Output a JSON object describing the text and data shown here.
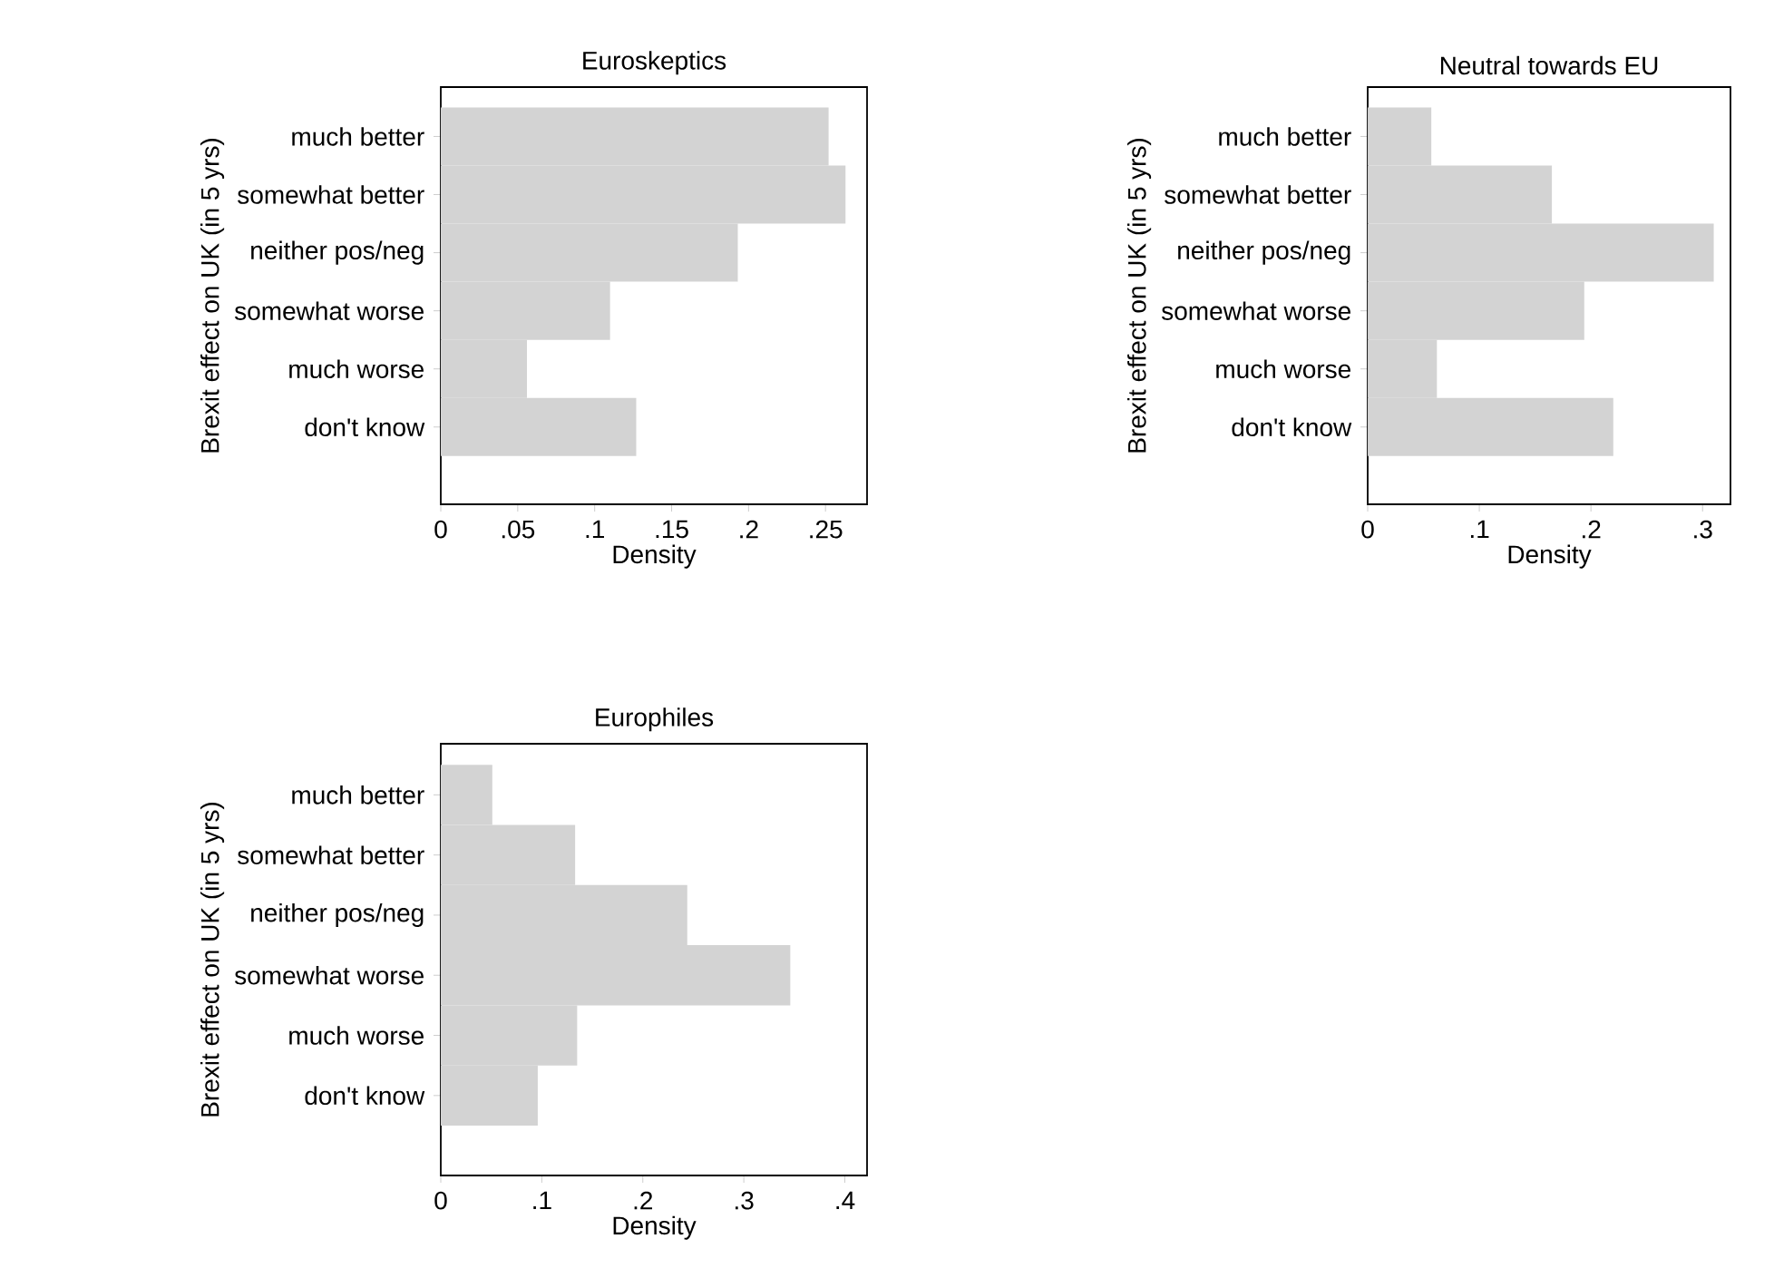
{
  "chart_data": [
    {
      "type": "bar",
      "orientation": "horizontal",
      "title": "Euroskeptics",
      "xlabel": "Density",
      "ylabel": "Brexit effect on UK (in 5 yrs)",
      "categories": [
        "much better",
        "somewhat better",
        "neither pos/neg",
        "somewhat worse",
        "much worse",
        "don't know"
      ],
      "values": [
        0.252,
        0.263,
        0.193,
        0.11,
        0.056,
        0.127
      ],
      "color": "#d3d3d3",
      "xlim": [
        0,
        0.277
      ],
      "xticks": [
        0,
        {
          "value": 0.05,
          "label": ".05"
        },
        {
          "value": 0.1,
          "label": ".1"
        },
        {
          "value": 0.15,
          "label": ".15"
        },
        {
          "value": 0.2,
          "label": ".2"
        },
        {
          "value": 0.25,
          "label": ".25"
        }
      ]
    },
    {
      "type": "bar",
      "orientation": "horizontal",
      "title": "Neutral towards EU",
      "xlabel": "Density",
      "ylabel": "Brexit effect on UK (in 5 yrs)",
      "categories": [
        "much better",
        "somewhat better",
        "neither pos/neg",
        "somewhat worse",
        "much worse",
        "don't know"
      ],
      "values": [
        0.057,
        0.165,
        0.31,
        0.194,
        0.062,
        0.22
      ],
      "color": "#d3d3d3",
      "xlim": [
        0,
        0.325
      ],
      "xticks": [
        0,
        {
          "value": 0.1,
          "label": ".1"
        },
        {
          "value": 0.2,
          "label": ".2"
        },
        {
          "value": 0.3,
          "label": ".3"
        }
      ]
    },
    {
      "type": "bar",
      "orientation": "horizontal",
      "title": "Europhiles",
      "xlabel": "Density",
      "ylabel": "Brexit effect on UK (in 5 yrs)",
      "categories": [
        "much better",
        "somewhat better",
        "neither pos/neg",
        "somewhat worse",
        "much worse",
        "don't know"
      ],
      "values": [
        0.051,
        0.133,
        0.244,
        0.346,
        0.135,
        0.096
      ],
      "color": "#d3d3d3",
      "xlim": [
        0,
        0.422
      ],
      "xticks": [
        0,
        {
          "value": 0.1,
          "label": ".1"
        },
        {
          "value": 0.2,
          "label": ".2"
        },
        {
          "value": 0.3,
          "label": ".3"
        },
        {
          "value": 0.4,
          "label": ".4"
        }
      ]
    }
  ]
}
